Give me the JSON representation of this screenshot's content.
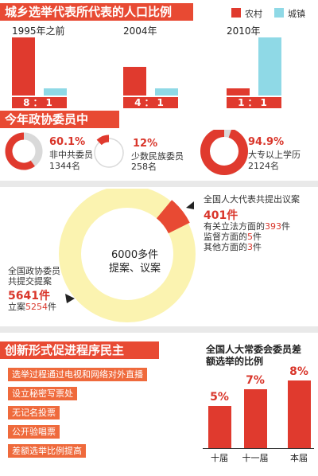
{
  "header": {
    "title": "城乡选举代表所代表的人口比例"
  },
  "legend": {
    "rural": "农村",
    "urban": "城镇",
    "rural_color": "#e03a2e",
    "urban_color": "#8fd9e6"
  },
  "ratios": [
    {
      "year": "1995年之前",
      "ratio": "8：1"
    },
    {
      "year": "2004年",
      "ratio": "4：1"
    },
    {
      "year": "2010年",
      "ratio": "1：1"
    }
  ],
  "cppcc": {
    "title": "今年政协委员中",
    "items": [
      {
        "pct": "60.1%",
        "label": "非中共委员",
        "count": "1344名",
        "value": 60.1
      },
      {
        "pct": "12%",
        "label": "少数民族委员",
        "count": "258名",
        "value": 12
      },
      {
        "pct": "94.9%",
        "label": "大专以上学历",
        "count": "2124名",
        "value": 94.9
      }
    ]
  },
  "proposals": {
    "center_line1": "6000多件",
    "center_line2": "提案、议案",
    "npc_title": "全国人大代表共提出议案",
    "npc_total": "401件",
    "npc_lines": [
      {
        "pre": "有关立法方面的",
        "num": "393",
        "post": "件"
      },
      {
        "pre": "监督方面的",
        "num": "5",
        "post": "件"
      },
      {
        "pre": "其他方面的",
        "num": "3",
        "post": "件"
      }
    ],
    "cppcc_title1": "全国政协委员",
    "cppcc_title2": "共提交提案",
    "cppcc_total": "5641件",
    "cppcc_pre": "立案",
    "cppcc_num": "5254",
    "cppcc_post": "件"
  },
  "innovation": {
    "title": "创新形式促进程序民主",
    "steps": [
      "选举过程通过电视和网络对外直播",
      "设立秘密写票处",
      "无记名投票",
      "公开验唱票",
      "差额选举比例提高"
    ]
  },
  "chart_data": [
    {
      "type": "bar",
      "categories": [
        "1995年之前",
        "2004年",
        "2010年"
      ],
      "series": [
        {
          "name": "农村",
          "values": [
            8,
            4,
            1
          ]
        },
        {
          "name": "城镇",
          "values": [
            1,
            1,
            1
          ]
        }
      ],
      "title": "城乡选举代表所代表的人口比例"
    },
    {
      "type": "pie",
      "categories": [
        "全国人大代表共提出议案",
        "全国政协委员共提交提案"
      ],
      "values": [
        401,
        5641
      ]
    },
    {
      "type": "bar",
      "title": "全国人大常委会委员差额选举的比例",
      "categories": [
        "十届",
        "十一届",
        "本届"
      ],
      "values": [
        5,
        7,
        8
      ],
      "labels": [
        "5%",
        "7%",
        "8%"
      ]
    }
  ]
}
